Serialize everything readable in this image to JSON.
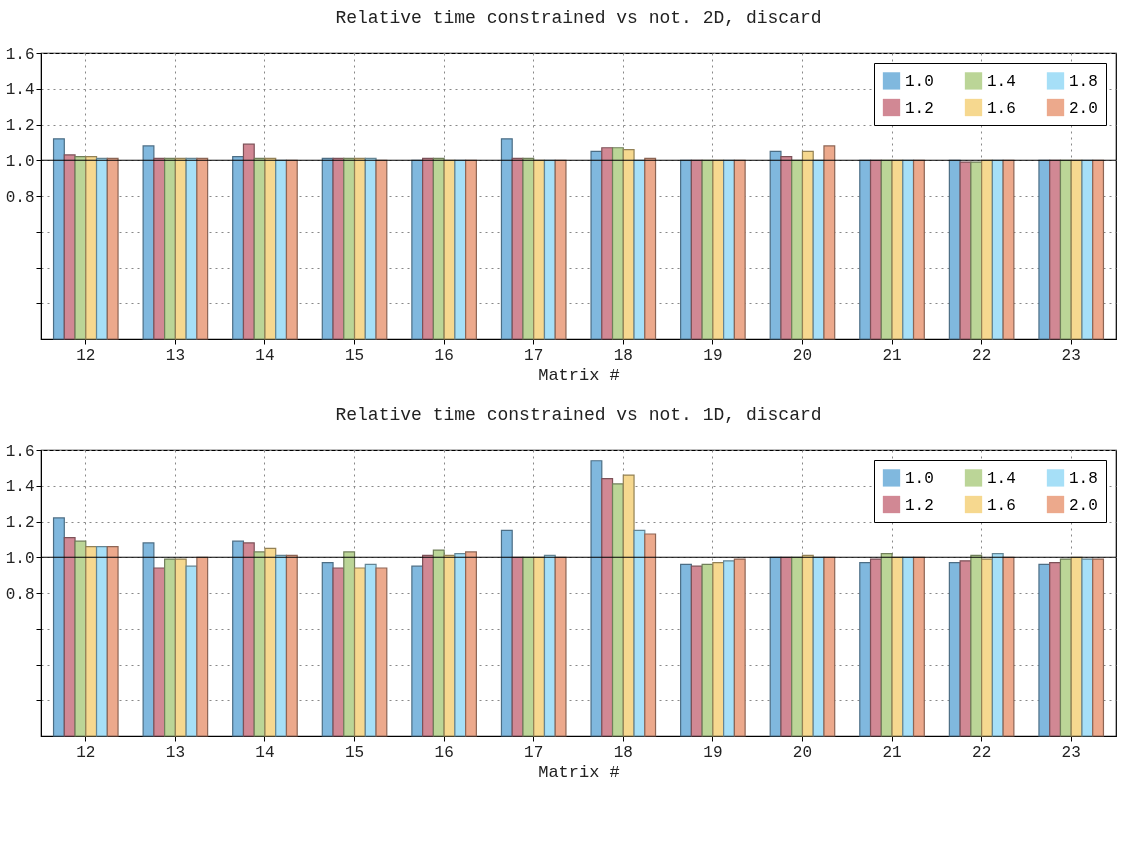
{
  "chart_data": [
    {
      "type": "bar",
      "title": "Relative time constrained vs not. 2D, discard",
      "xlabel": "Matrix #",
      "categories": [
        "12",
        "13",
        "14",
        "15",
        "16",
        "17",
        "18",
        "19",
        "20",
        "21",
        "22",
        "23"
      ],
      "series": [
        {
          "name": "1.0",
          "color": "#80b8de",
          "values": [
            1.12,
            1.08,
            1.02,
            1.01,
            1.0,
            1.12,
            1.05,
            1.0,
            1.05,
            1.0,
            1.0,
            1.0
          ]
        },
        {
          "name": "1.2",
          "color": "#d18894",
          "values": [
            1.03,
            1.01,
            1.09,
            1.01,
            1.01,
            1.01,
            1.07,
            1.0,
            1.02,
            1.0,
            0.99,
            1.0
          ]
        },
        {
          "name": "1.4",
          "color": "#bbd597",
          "values": [
            1.02,
            1.01,
            1.01,
            1.01,
            1.01,
            1.01,
            1.07,
            1.0,
            1.0,
            1.0,
            0.99,
            1.0
          ]
        },
        {
          "name": "1.6",
          "color": "#f6d88f",
          "values": [
            1.02,
            1.01,
            1.01,
            1.01,
            1.0,
            1.0,
            1.06,
            1.0,
            1.05,
            1.0,
            1.0,
            1.0
          ]
        },
        {
          "name": "1.8",
          "color": "#a6dff7",
          "values": [
            1.01,
            1.01,
            1.0,
            1.01,
            1.0,
            1.0,
            1.0,
            1.0,
            1.0,
            1.0,
            1.0,
            1.0
          ]
        },
        {
          "name": "2.0",
          "color": "#eca98c",
          "values": [
            1.01,
            1.01,
            1.0,
            1.0,
            1.0,
            1.0,
            1.01,
            1.0,
            1.08,
            1.0,
            1.0,
            1.0
          ]
        }
      ],
      "ylim": [
        0,
        1.6
      ],
      "yticks": [
        {
          "value": 0.2,
          "label": null
        },
        {
          "value": 0.4,
          "label": null
        },
        {
          "value": 0.6,
          "label": null
        },
        {
          "value": 0.8,
          "label": "0.8"
        },
        {
          "value": 1.0,
          "label": "1.0"
        },
        {
          "value": 1.2,
          "label": "1.2"
        },
        {
          "value": 1.4,
          "label": "1.4"
        },
        {
          "value": 1.6,
          "label": "1.6"
        }
      ],
      "grid": true,
      "legend": "top right",
      "ref_lines": [
        {
          "axis": "y",
          "value": 1.0,
          "color": "#000000"
        }
      ]
    },
    {
      "type": "bar",
      "title": "Relative time constrained vs not. 1D, discard",
      "xlabel": "Matrix #",
      "categories": [
        "12",
        "13",
        "14",
        "15",
        "16",
        "17",
        "18",
        "19",
        "20",
        "21",
        "22",
        "23"
      ],
      "series": [
        {
          "name": "1.0",
          "color": "#80b8de",
          "values": [
            1.22,
            1.08,
            1.09,
            0.97,
            0.95,
            1.15,
            1.54,
            0.96,
            1.0,
            0.97,
            0.97,
            0.96
          ]
        },
        {
          "name": "1.2",
          "color": "#d18894",
          "values": [
            1.11,
            0.94,
            1.08,
            0.94,
            1.01,
            1.0,
            1.44,
            0.95,
            1.0,
            0.99,
            0.98,
            0.97
          ]
        },
        {
          "name": "1.4",
          "color": "#bbd597",
          "values": [
            1.09,
            0.99,
            1.03,
            1.03,
            1.04,
            1.0,
            1.41,
            0.96,
            1.0,
            1.02,
            1.01,
            0.99
          ]
        },
        {
          "name": "1.6",
          "color": "#f6d88f",
          "values": [
            1.06,
            0.99,
            1.05,
            0.94,
            1.01,
            1.0,
            1.46,
            0.97,
            1.01,
            1.0,
            0.99,
            1.0
          ]
        },
        {
          "name": "1.8",
          "color": "#a6dff7",
          "values": [
            1.06,
            0.95,
            1.01,
            0.96,
            1.02,
            1.01,
            1.15,
            0.98,
            1.0,
            1.0,
            1.02,
            0.99
          ]
        },
        {
          "name": "2.0",
          "color": "#eca98c",
          "values": [
            1.06,
            1.0,
            1.01,
            0.94,
            1.03,
            1.0,
            1.13,
            0.99,
            1.0,
            1.0,
            1.0,
            0.99
          ]
        }
      ],
      "ylim": [
        0,
        1.6
      ],
      "yticks": [
        {
          "value": 0.2,
          "label": null
        },
        {
          "value": 0.4,
          "label": null
        },
        {
          "value": 0.6,
          "label": null
        },
        {
          "value": 0.8,
          "label": "0.8"
        },
        {
          "value": 1.0,
          "label": "1.0"
        },
        {
          "value": 1.2,
          "label": "1.2"
        },
        {
          "value": 1.4,
          "label": "1.4"
        },
        {
          "value": 1.6,
          "label": "1.6"
        }
      ],
      "grid": true,
      "legend": "top right",
      "ref_lines": [
        {
          "axis": "y",
          "value": 1.0,
          "color": "#000000"
        }
      ]
    }
  ]
}
